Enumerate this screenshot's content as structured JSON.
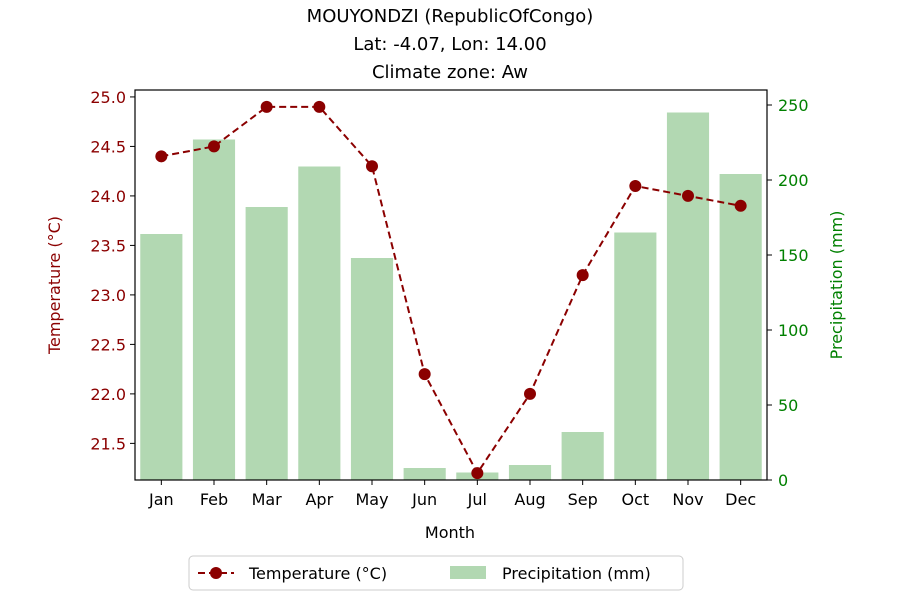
{
  "title_lines": [
    "MOUYONDZI (RepublicOfCongo)",
    "Lat: -4.07, Lon: 14.00",
    "Climate zone: Aw"
  ],
  "colors": {
    "temperature": "#8b0000",
    "precipitation_bar": "#b2d8b2",
    "precipitation_axis": "#008000",
    "text": "#000000"
  },
  "chart_data": {
    "type": "bar",
    "categories": [
      "Jan",
      "Feb",
      "Mar",
      "Apr",
      "May",
      "Jun",
      "Jul",
      "Aug",
      "Sep",
      "Oct",
      "Nov",
      "Dec"
    ],
    "xlabel": "Month",
    "series": [
      {
        "name": "Temperature (°C)",
        "type": "line",
        "axis": "left",
        "values": [
          24.4,
          24.5,
          24.9,
          24.9,
          24.3,
          22.2,
          21.2,
          22.0,
          23.2,
          24.1,
          24.0,
          23.9
        ]
      },
      {
        "name": "Precipitation (mm)",
        "type": "bar",
        "axis": "right",
        "values": [
          164,
          227,
          182,
          209,
          148,
          8,
          5,
          10,
          32,
          165,
          245,
          204
        ]
      }
    ],
    "y_left": {
      "label": "Temperature (°C)",
      "ylim": [
        21.13,
        25.07
      ],
      "ticks": [
        "21.5",
        "22.0",
        "22.5",
        "23.0",
        "23.5",
        "24.0",
        "24.5",
        "25.0"
      ]
    },
    "y_right": {
      "label": "Precipitation (mm)",
      "ylim": [
        0,
        260
      ],
      "ticks": [
        "0",
        "50",
        "100",
        "150",
        "200",
        "250"
      ]
    },
    "grid": false,
    "legend": {
      "placement": "bottom-center",
      "entries": [
        "Temperature (°C)",
        "Precipitation (mm)"
      ]
    }
  }
}
